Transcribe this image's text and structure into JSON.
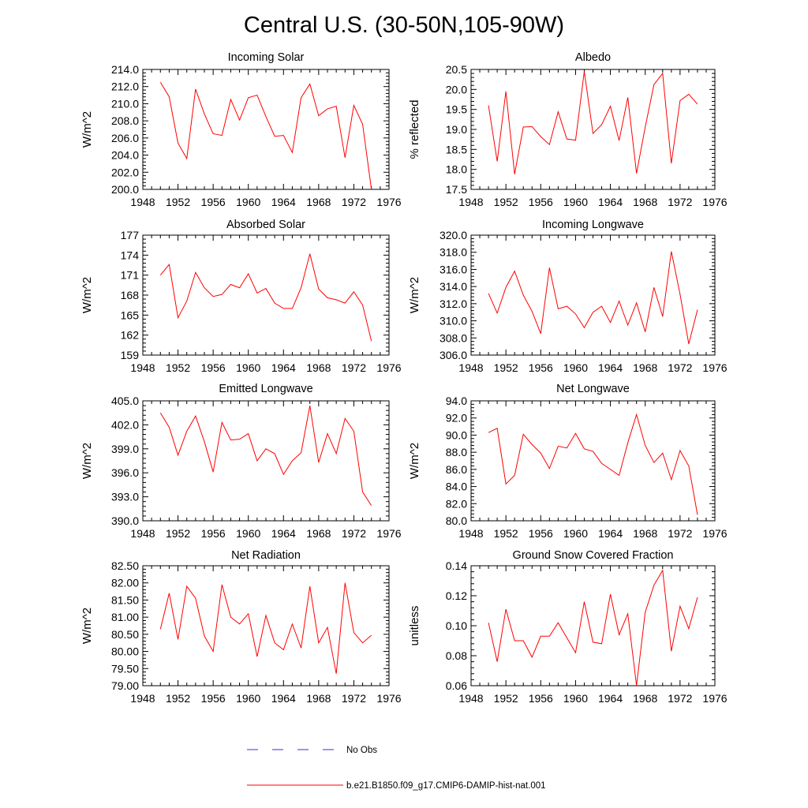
{
  "title": "Central U.S. (30-50N,105-90W)",
  "legend": {
    "placement": "bottom-center",
    "entries": [
      {
        "label": "No Obs",
        "color": "#3333cc",
        "style": "dashed"
      },
      {
        "label": "b.e21.B1850.f09_g17.CMIP6-DAMIP-hist-nat.001",
        "color": "#ff0000",
        "style": "solid"
      }
    ]
  },
  "chart_data": [
    {
      "type": "line",
      "title": "Incoming Solar",
      "ylabel": "W/m^2",
      "xlim": [
        1948,
        1976
      ],
      "ylim": [
        200,
        214
      ],
      "xticks": [
        1948,
        1952,
        1956,
        1960,
        1964,
        1968,
        1972,
        1976
      ],
      "yticks": [
        "200.0",
        "202.0",
        "204.0",
        "206.0",
        "208.0",
        "210.0",
        "212.0",
        "214.0"
      ],
      "grid": false,
      "series": [
        {
          "color": "#ff0000",
          "x": [
            1950,
            1951,
            1952,
            1953,
            1954,
            1955,
            1956,
            1957,
            1958,
            1959,
            1960,
            1961,
            1962,
            1963,
            1964,
            1965,
            1966,
            1967,
            1968,
            1969,
            1970,
            1971,
            1972,
            1973,
            1974
          ],
          "y": [
            212.5,
            210.8,
            205.4,
            203.6,
            211.7,
            208.8,
            206.5,
            206.3,
            210.5,
            208.1,
            210.7,
            211.0,
            208.5,
            206.2,
            206.3,
            204.3,
            210.7,
            212.3,
            208.6,
            209.4,
            209.7,
            203.7,
            209.8,
            207.6,
            200.0
          ]
        }
      ]
    },
    {
      "type": "line",
      "title": "Albedo",
      "ylabel": "% reflected",
      "xlim": [
        1948,
        1976
      ],
      "ylim": [
        17.5,
        20.5
      ],
      "xticks": [
        1948,
        1952,
        1956,
        1960,
        1964,
        1968,
        1972,
        1976
      ],
      "yticks": [
        "17.5",
        "18.0",
        "18.5",
        "19.0",
        "19.5",
        "20.0",
        "20.5"
      ],
      "grid": false,
      "series": [
        {
          "color": "#ff0000",
          "x": [
            1950,
            1951,
            1952,
            1953,
            1954,
            1955,
            1956,
            1957,
            1958,
            1959,
            1960,
            1961,
            1962,
            1963,
            1964,
            1965,
            1966,
            1967,
            1968,
            1969,
            1970,
            1971,
            1972,
            1973,
            1974
          ],
          "y": [
            19.6,
            18.2,
            19.95,
            17.88,
            19.06,
            19.07,
            18.82,
            18.62,
            19.44,
            18.76,
            18.73,
            20.45,
            18.9,
            19.12,
            19.58,
            18.72,
            19.8,
            17.9,
            19.06,
            20.12,
            20.4,
            18.15,
            19.72,
            19.88,
            19.63
          ]
        }
      ]
    },
    {
      "type": "line",
      "title": "Absorbed Solar",
      "ylabel": "W/m^2",
      "xlim": [
        1948,
        1976
      ],
      "ylim": [
        159,
        177
      ],
      "xticks": [
        1948,
        1952,
        1956,
        1960,
        1964,
        1968,
        1972,
        1976
      ],
      "yticks": [
        "159",
        "162",
        "165",
        "168",
        "171",
        "174",
        "177"
      ],
      "grid": false,
      "series": [
        {
          "color": "#ff0000",
          "x": [
            1950,
            1951,
            1952,
            1953,
            1954,
            1955,
            1956,
            1957,
            1958,
            1959,
            1960,
            1961,
            1962,
            1963,
            1964,
            1965,
            1966,
            1967,
            1968,
            1969,
            1970,
            1971,
            1972,
            1973,
            1974
          ],
          "y": [
            171.0,
            172.6,
            164.6,
            167.1,
            171.4,
            169.1,
            167.8,
            168.1,
            169.6,
            169.1,
            171.2,
            168.3,
            169.0,
            166.8,
            166.0,
            166.0,
            169.1,
            174.2,
            168.9,
            167.6,
            167.3,
            166.8,
            168.5,
            166.5,
            161.1
          ]
        }
      ]
    },
    {
      "type": "line",
      "title": "Incoming Longwave",
      "ylabel": "W/m^2",
      "xlim": [
        1948,
        1976
      ],
      "ylim": [
        306,
        320
      ],
      "xticks": [
        1948,
        1952,
        1956,
        1960,
        1964,
        1968,
        1972,
        1976
      ],
      "yticks": [
        "306.0",
        "308.0",
        "310.0",
        "312.0",
        "314.0",
        "316.0",
        "318.0",
        "320.0"
      ],
      "grid": false,
      "series": [
        {
          "color": "#ff0000",
          "x": [
            1950,
            1951,
            1952,
            1953,
            1954,
            1955,
            1956,
            1957,
            1958,
            1959,
            1960,
            1961,
            1962,
            1963,
            1964,
            1965,
            1966,
            1967,
            1968,
            1969,
            1970,
            1971,
            1972,
            1973,
            1974
          ],
          "y": [
            313.2,
            310.9,
            313.9,
            315.8,
            313.0,
            311.1,
            308.5,
            316.2,
            311.4,
            311.7,
            310.8,
            309.2,
            311.0,
            311.7,
            309.8,
            312.3,
            309.5,
            312.1,
            308.7,
            313.9,
            310.5,
            318.1,
            313.1,
            307.3,
            311.3
          ]
        }
      ]
    },
    {
      "type": "line",
      "title": "Emitted Longwave",
      "ylabel": "W/m^2",
      "xlim": [
        1948,
        1976
      ],
      "ylim": [
        390,
        405
      ],
      "xticks": [
        1948,
        1952,
        1956,
        1960,
        1964,
        1968,
        1972,
        1976
      ],
      "yticks": [
        "390.0",
        "393.0",
        "396.0",
        "399.0",
        "402.0",
        "405.0"
      ],
      "grid": false,
      "series": [
        {
          "color": "#ff0000",
          "x": [
            1950,
            1951,
            1952,
            1953,
            1954,
            1955,
            1956,
            1957,
            1958,
            1959,
            1960,
            1961,
            1962,
            1963,
            1964,
            1965,
            1966,
            1967,
            1968,
            1969,
            1970,
            1971,
            1972,
            1973,
            1974
          ],
          "y": [
            403.5,
            401.7,
            398.2,
            401.2,
            403.1,
            399.9,
            396.1,
            402.3,
            400.1,
            400.2,
            400.9,
            397.5,
            399.0,
            398.4,
            395.8,
            397.5,
            398.5,
            404.4,
            397.3,
            400.9,
            398.4,
            402.8,
            401.2,
            393.6,
            391.9
          ]
        }
      ]
    },
    {
      "type": "line",
      "title": "Net Longwave",
      "ylabel": "W/m^2",
      "xlim": [
        1948,
        1976
      ],
      "ylim": [
        80,
        94
      ],
      "xticks": [
        1948,
        1952,
        1956,
        1960,
        1964,
        1968,
        1972,
        1976
      ],
      "yticks": [
        "80.0",
        "82.0",
        "84.0",
        "86.0",
        "88.0",
        "90.0",
        "92.0",
        "94.0"
      ],
      "grid": false,
      "series": [
        {
          "color": "#ff0000",
          "x": [
            1950,
            1951,
            1952,
            1953,
            1954,
            1955,
            1956,
            1957,
            1958,
            1959,
            1960,
            1961,
            1962,
            1963,
            1964,
            1965,
            1966,
            1967,
            1968,
            1969,
            1970,
            1971,
            1972,
            1973,
            1974
          ],
          "y": [
            90.3,
            90.8,
            84.3,
            85.3,
            90.1,
            88.9,
            87.9,
            86.1,
            88.7,
            88.5,
            90.2,
            88.4,
            88.1,
            86.7,
            86.0,
            85.3,
            89.1,
            92.4,
            88.8,
            86.8,
            87.9,
            84.8,
            88.2,
            86.4,
            80.7
          ]
        }
      ]
    },
    {
      "type": "line",
      "title": "Net Radiation",
      "ylabel": "W/m^2",
      "xlim": [
        1948,
        1976
      ],
      "ylim": [
        79.0,
        82.5
      ],
      "xticks": [
        1948,
        1952,
        1956,
        1960,
        1964,
        1968,
        1972,
        1976
      ],
      "yticks": [
        "79.00",
        "79.50",
        "80.00",
        "80.50",
        "81.00",
        "81.50",
        "82.00",
        "82.50"
      ],
      "grid": false,
      "series": [
        {
          "color": "#ff0000",
          "x": [
            1950,
            1951,
            1952,
            1953,
            1954,
            1955,
            1956,
            1957,
            1958,
            1959,
            1960,
            1961,
            1962,
            1963,
            1964,
            1965,
            1966,
            1967,
            1968,
            1969,
            1970,
            1971,
            1972,
            1973,
            1974
          ],
          "y": [
            80.65,
            81.7,
            80.35,
            81.9,
            81.55,
            80.45,
            80.0,
            81.95,
            81.0,
            80.8,
            81.1,
            79.85,
            81.05,
            80.25,
            80.05,
            80.8,
            80.1,
            81.9,
            80.25,
            80.7,
            79.35,
            82.0,
            80.55,
            80.25,
            80.47
          ]
        }
      ]
    },
    {
      "type": "line",
      "title": "Ground Snow Covered Fraction",
      "ylabel": "unitless",
      "xlim": [
        1948,
        1976
      ],
      "ylim": [
        0.06,
        0.14
      ],
      "xticks": [
        1948,
        1952,
        1956,
        1960,
        1964,
        1968,
        1972,
        1976
      ],
      "yticks": [
        "0.06",
        "0.08",
        "0.10",
        "0.12",
        "0.14"
      ],
      "grid": false,
      "series": [
        {
          "color": "#ff0000",
          "x": [
            1950,
            1951,
            1952,
            1953,
            1954,
            1955,
            1956,
            1957,
            1958,
            1959,
            1960,
            1961,
            1962,
            1963,
            1964,
            1965,
            1966,
            1967,
            1968,
            1969,
            1970,
            1971,
            1972,
            1973,
            1974
          ],
          "y": [
            0.102,
            0.076,
            0.111,
            0.09,
            0.09,
            0.079,
            0.093,
            0.093,
            0.102,
            0.092,
            0.082,
            0.116,
            0.089,
            0.088,
            0.121,
            0.094,
            0.108,
            0.06,
            0.109,
            0.127,
            0.137,
            0.083,
            0.113,
            0.098,
            0.119
          ]
        }
      ]
    }
  ]
}
